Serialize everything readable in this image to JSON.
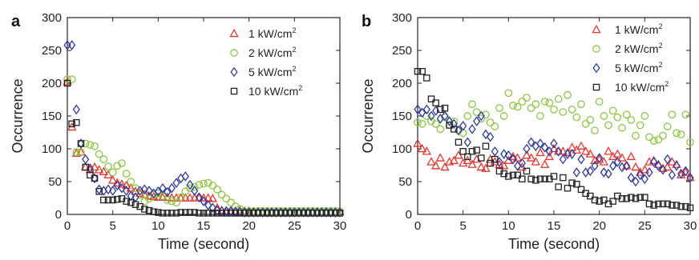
{
  "colors": {
    "1": "#e8352e",
    "2": "#8cc63f",
    "5": "#2e3a9e",
    "10": "#222222"
  },
  "chart_data": [
    {
      "panel_label": "a",
      "type": "scatter",
      "xlabel": "Time (second)",
      "ylabel": "Occurrence",
      "xlim": [
        0,
        30
      ],
      "ylim": [
        0,
        300
      ],
      "xticks": [
        "0",
        "5",
        "10",
        "15",
        "20",
        "25",
        "30"
      ],
      "yticks": [
        "0",
        "50",
        "100",
        "150",
        "200",
        "250",
        "300"
      ],
      "legend_position": "top-right",
      "series": [
        {
          "name": "1 kW/cm2",
          "marker": "triangle",
          "color_key": "1",
          "x": [
            0,
            0.5,
            1,
            1.5,
            2,
            2.5,
            3,
            3.5,
            4,
            4.5,
            5,
            5.5,
            6,
            6.5,
            7,
            7.5,
            8,
            8.5,
            9,
            9.5,
            10,
            10.5,
            11,
            11.5,
            12,
            12.5,
            13,
            13.5,
            14,
            14.5,
            15,
            15.5,
            16,
            16.5,
            17,
            17.5,
            18,
            18.5,
            19,
            19.5,
            20,
            20.5,
            21,
            21.5,
            22,
            22.5,
            23,
            23.5,
            24,
            24.5,
            25,
            25.5,
            26,
            26.5,
            27,
            27.5,
            28,
            28.5,
            29,
            29.5,
            30
          ],
          "y": [
            202,
            133,
            93,
            95,
            72,
            68,
            72,
            68,
            65,
            60,
            52,
            48,
            46,
            44,
            40,
            35,
            32,
            30,
            28,
            27,
            26,
            26,
            26,
            25,
            25,
            25,
            25,
            25,
            25,
            25,
            25,
            25,
            24,
            10,
            6,
            5,
            5,
            5,
            5,
            5,
            5,
            4,
            4,
            4,
            4,
            4,
            4,
            4,
            4,
            4,
            4,
            4,
            4,
            4,
            4,
            4,
            4,
            4,
            4,
            4,
            4
          ]
        },
        {
          "name": "2 kW/cm2",
          "marker": "circle",
          "color_key": "2",
          "x": [
            0,
            0.5,
            1,
            1.5,
            2,
            2.5,
            3,
            3.5,
            4,
            4.5,
            5,
            5.5,
            6,
            6.5,
            7,
            7.5,
            8,
            8.5,
            9,
            9.5,
            10,
            10.5,
            11,
            11.5,
            12,
            12.5,
            13,
            13.5,
            14,
            14.5,
            15,
            15.5,
            16,
            16.5,
            17,
            17.5,
            18,
            18.5,
            19,
            19.5,
            20,
            20.5,
            21,
            21.5,
            22,
            22.5,
            23,
            23.5,
            24,
            24.5,
            25,
            25.5,
            26,
            26.5,
            27,
            27.5,
            28,
            28.5,
            29,
            29.5,
            30
          ],
          "y": [
            206,
            206,
            95,
            95,
            108,
            106,
            104,
            92,
            84,
            73,
            64,
            74,
            78,
            62,
            50,
            40,
            30,
            20,
            24,
            30,
            32,
            28,
            22,
            20,
            18,
            26,
            35,
            40,
            42,
            45,
            47,
            48,
            44,
            38,
            30,
            24,
            18,
            12,
            8,
            5,
            5,
            5,
            5,
            5,
            5,
            5,
            5,
            5,
            5,
            5,
            5,
            5,
            5,
            5,
            5,
            5,
            5,
            5,
            5,
            5,
            5
          ]
        },
        {
          "name": "5 kW/cm2",
          "marker": "diamond",
          "color_key": "5",
          "x": [
            0,
            0.5,
            1,
            1.5,
            2,
            2.5,
            3,
            3.5,
            4,
            4.5,
            5,
            5.5,
            6,
            6.5,
            7,
            7.5,
            8,
            8.5,
            9,
            9.5,
            10,
            10.5,
            11,
            11.5,
            12,
            12.5,
            13,
            13.5,
            14,
            14.5,
            15,
            15.5,
            16,
            16.5,
            17,
            17.5,
            18,
            18.5,
            19,
            19.5,
            20,
            20.5,
            21,
            21.5,
            22,
            22.5,
            23,
            23.5,
            24,
            24.5,
            25,
            25.5,
            26,
            26.5,
            27,
            27.5,
            28,
            28.5,
            29,
            29.5,
            30
          ],
          "y": [
            258,
            258,
            160,
            108,
            84,
            70,
            55,
            38,
            36,
            38,
            36,
            44,
            40,
            36,
            28,
            26,
            36,
            38,
            36,
            32,
            35,
            40,
            34,
            40,
            48,
            55,
            58,
            45,
            36,
            26,
            20,
            14,
            10,
            6,
            5,
            5,
            5,
            4,
            4,
            3,
            3,
            3,
            3,
            3,
            3,
            3,
            3,
            3,
            3,
            3,
            3,
            3,
            3,
            3,
            3,
            3,
            3,
            3,
            3,
            3,
            3
          ]
        },
        {
          "name": "10 kW/cm2",
          "marker": "square",
          "color_key": "10",
          "x": [
            0,
            0.5,
            1,
            1.5,
            2,
            2.5,
            3,
            3.5,
            4,
            4.5,
            5,
            5.5,
            6,
            6.5,
            7,
            7.5,
            8,
            8.5,
            9,
            9.5,
            10,
            10.5,
            11,
            11.5,
            12,
            12.5,
            13,
            13.5,
            14,
            14.5,
            15,
            15.5,
            16,
            16.5,
            17,
            17.5,
            18,
            18.5,
            19,
            19.5,
            20,
            20.5,
            21,
            21.5,
            22,
            22.5,
            23,
            23.5,
            24,
            24.5,
            25,
            25.5,
            26,
            26.5,
            27,
            27.5,
            28,
            28.5,
            29,
            29.5,
            30
          ],
          "y": [
            200,
            138,
            140,
            108,
            72,
            60,
            55,
            35,
            22,
            22,
            22,
            23,
            24,
            20,
            18,
            15,
            12,
            8,
            6,
            4,
            3,
            2,
            2,
            2,
            2,
            3,
            3,
            3,
            3,
            2,
            2,
            2,
            2,
            2,
            2,
            2,
            2,
            2,
            2,
            2,
            2,
            2,
            2,
            2,
            2,
            2,
            2,
            2,
            2,
            2,
            2,
            2,
            2,
            2,
            2,
            2,
            2,
            2,
            2,
            2,
            2
          ]
        }
      ]
    },
    {
      "panel_label": "b",
      "type": "scatter",
      "xlabel": "Time (second)",
      "ylabel": "Occurrence",
      "xlim": [
        0,
        30
      ],
      "ylim": [
        0,
        300
      ],
      "xticks": [
        "0",
        "5",
        "10",
        "15",
        "20",
        "25",
        "30"
      ],
      "yticks": [
        "0",
        "50",
        "100",
        "150",
        "200",
        "250",
        "300"
      ],
      "legend_position": "top-right",
      "series": [
        {
          "name": "1 kW/cm2",
          "marker": "triangle",
          "color_key": "1",
          "x": [
            0,
            0.5,
            1,
            1.5,
            2,
            2.5,
            3,
            3.5,
            4,
            4.5,
            5,
            5.5,
            6,
            6.5,
            7,
            7.5,
            8,
            8.5,
            9,
            9.5,
            10,
            10.5,
            11,
            11.5,
            12,
            12.5,
            13,
            13.5,
            14,
            14.5,
            15,
            15.5,
            16,
            16.5,
            17,
            17.5,
            18,
            18.5,
            19,
            19.5,
            20,
            20.5,
            21,
            21.5,
            22,
            22.5,
            23,
            23.5,
            24,
            24.5,
            25,
            25.5,
            26,
            26.5,
            27,
            27.5,
            28,
            28.5,
            29,
            29.5,
            30
          ],
          "y": [
            108,
            100,
            96,
            80,
            74,
            86,
            72,
            80,
            82,
            90,
            78,
            82,
            76,
            84,
            72,
            70,
            84,
            80,
            76,
            74,
            82,
            88,
            86,
            72,
            90,
            86,
            80,
            94,
            76,
            88,
            100,
            96,
            96,
            94,
            102,
            98,
            104,
            96,
            92,
            82,
            84,
            80,
            96,
            88,
            92,
            86,
            74,
            88,
            72,
            64,
            68,
            80,
            82,
            76,
            70,
            72,
            80,
            76,
            60,
            64,
            56
          ]
        },
        {
          "name": "2 kW/cm2",
          "marker": "circle",
          "color_key": "2",
          "x": [
            0,
            0.5,
            1,
            1.5,
            2,
            2.5,
            3,
            3.5,
            4,
            4.5,
            5,
            5.5,
            6,
            6.5,
            7,
            7.5,
            8,
            8.5,
            9,
            9.5,
            10,
            10.5,
            11,
            11.5,
            12,
            12.5,
            13,
            13.5,
            14,
            14.5,
            15,
            15.5,
            16,
            16.5,
            17,
            17.5,
            18,
            18.5,
            19,
            19.5,
            20,
            20.5,
            21,
            21.5,
            22,
            22.5,
            23,
            23.5,
            24,
            24.5,
            25,
            25.5,
            26,
            26.5,
            27,
            27.5,
            28,
            28.5,
            29,
            29.5,
            30
          ],
          "y": [
            140,
            138,
            150,
            142,
            138,
            130,
            148,
            136,
            142,
            128,
            124,
            150,
            168,
            156,
            146,
            152,
            140,
            134,
            162,
            150,
            185,
            166,
            164,
            172,
            178,
            162,
            168,
            150,
            172,
            170,
            160,
            176,
            156,
            182,
            160,
            148,
            168,
            138,
            144,
            128,
            172,
            150,
            136,
            158,
            148,
            132,
            152,
            144,
            120,
            136,
            150,
            118,
            112,
            114,
            120,
            134,
            152,
            124,
            122,
            152,
            110
          ]
        },
        {
          "name": "5 kW/cm2",
          "marker": "diamond",
          "color_key": "5",
          "x": [
            0,
            0.5,
            1,
            1.5,
            2,
            2.5,
            3,
            3.5,
            4,
            4.5,
            5,
            5.5,
            6,
            6.5,
            7,
            7.5,
            8,
            8.5,
            9,
            9.5,
            10,
            10.5,
            11,
            11.5,
            12,
            12.5,
            13,
            13.5,
            14,
            14.5,
            15,
            15.5,
            16,
            16.5,
            17,
            17.5,
            18,
            18.5,
            19,
            19.5,
            20,
            20.5,
            21,
            21.5,
            22,
            22.5,
            23,
            23.5,
            24,
            24.5,
            25,
            25.5,
            26,
            26.5,
            27,
            27.5,
            28,
            28.5,
            29,
            29.5,
            30
          ],
          "y": [
            160,
            155,
            160,
            150,
            158,
            146,
            150,
            142,
            138,
            128,
            135,
            110,
            130,
            142,
            150,
            122,
            118,
            96,
            80,
            92,
            90,
            84,
            74,
            78,
            100,
            110,
            104,
            108,
            102,
            96,
            108,
            96,
            84,
            92,
            92,
            64,
            84,
            64,
            66,
            74,
            86,
            64,
            62,
            74,
            80,
            72,
            74,
            56,
            50,
            60,
            54,
            64,
            80,
            74,
            68,
            84,
            60,
            74,
            62,
            66,
            56
          ]
        },
        {
          "name": "10 kW/cm2",
          "marker": "square",
          "color_key": "10",
          "x": [
            0,
            0.5,
            1,
            1.5,
            2,
            2.5,
            3,
            3.5,
            4,
            4.5,
            5,
            5.5,
            6,
            6.5,
            7,
            7.5,
            8,
            8.5,
            9,
            9.5,
            10,
            10.5,
            11,
            11.5,
            12,
            12.5,
            13,
            13.5,
            14,
            14.5,
            15,
            15.5,
            16,
            16.5,
            17,
            17.5,
            18,
            18.5,
            19,
            19.5,
            20,
            20.5,
            21,
            21.5,
            22,
            22.5,
            23,
            23.5,
            24,
            24.5,
            25,
            25.5,
            26,
            26.5,
            27,
            27.5,
            28,
            28.5,
            29,
            29.5,
            30
          ],
          "y": [
            218,
            218,
            208,
            176,
            170,
            160,
            162,
            136,
            130,
            110,
            96,
            88,
            96,
            98,
            86,
            104,
            78,
            84,
            66,
            62,
            58,
            60,
            60,
            54,
            66,
            54,
            52,
            54,
            54,
            54,
            58,
            42,
            56,
            40,
            48,
            46,
            38,
            32,
            28,
            22,
            20,
            22,
            16,
            20,
            28,
            24,
            24,
            26,
            24,
            26,
            26,
            16,
            14,
            16,
            16,
            16,
            14,
            14,
            12,
            12,
            10
          ]
        }
      ]
    }
  ]
}
